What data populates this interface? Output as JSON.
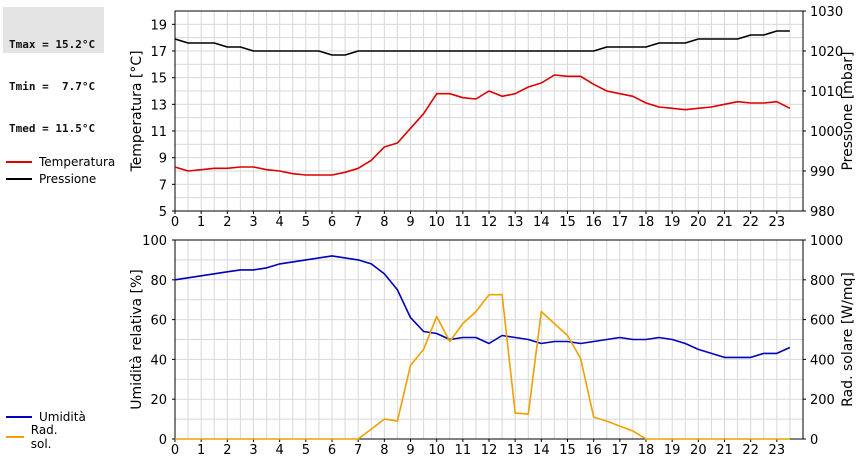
{
  "stats": {
    "tmax": "Tmax = 15.2°C",
    "tmin": "Tmin =  7.7°C",
    "tmed": "Tmed = 11.5°C"
  },
  "colors": {
    "temperatura": "#dd0000",
    "pressione": "#000000",
    "umidita": "#0000bb",
    "radsol": "#f0a000",
    "grid": "#d8d8d8"
  },
  "legend_top": [
    {
      "label": "Temperatura",
      "color": "#dd0000"
    },
    {
      "label": "Pressione",
      "color": "#000000"
    }
  ],
  "legend_bottom": [
    {
      "label": "Umidità",
      "color": "#0000bb"
    },
    {
      "label": "Rad. sol.",
      "color": "#f0a000"
    }
  ],
  "chart_data": [
    {
      "type": "line",
      "xlabel": "",
      "ylabel": "Temperatura [°C]",
      "ylabel_right": "Pressione [mbar]",
      "xlim": [
        0,
        24
      ],
      "xticks": [
        0,
        1,
        2,
        3,
        4,
        5,
        6,
        7,
        8,
        9,
        10,
        11,
        12,
        13,
        14,
        15,
        16,
        17,
        18,
        19,
        20,
        21,
        22,
        23
      ],
      "ylim": [
        5,
        20
      ],
      "yticks": [
        5,
        7,
        9,
        11,
        13,
        15,
        17,
        19
      ],
      "ylim_right": [
        980,
        1030
      ],
      "yticks_right": [
        980,
        990,
        1000,
        1010,
        1020,
        1030
      ],
      "grid": true,
      "x": [
        0,
        0.5,
        1,
        1.5,
        2,
        2.5,
        3,
        3.5,
        4,
        4.5,
        5,
        5.5,
        6,
        6.5,
        7,
        7.5,
        8,
        8.5,
        9,
        9.5,
        10,
        10.5,
        11,
        11.5,
        12,
        12.5,
        13,
        13.5,
        14,
        14.5,
        15,
        15.5,
        16,
        16.5,
        17,
        17.5,
        18,
        18.5,
        19,
        19.5,
        20,
        20.5,
        21,
        21.5,
        22,
        22.5,
        23,
        23.5
      ],
      "series": [
        {
          "name": "Temperatura",
          "axis": "left",
          "color": "#dd0000",
          "values": [
            8.3,
            8.0,
            8.1,
            8.2,
            8.2,
            8.3,
            8.3,
            8.1,
            8.0,
            7.8,
            7.7,
            7.7,
            7.7,
            7.9,
            8.2,
            8.8,
            9.8,
            10.1,
            11.2,
            12.3,
            13.8,
            13.8,
            13.5,
            13.4,
            14.0,
            13.6,
            13.8,
            14.3,
            14.6,
            15.2,
            15.1,
            15.1,
            14.5,
            14.0,
            13.8,
            13.6,
            13.1,
            12.8,
            12.7,
            12.6,
            12.7,
            12.8,
            13.0,
            13.2,
            13.1,
            13.1,
            13.2,
            12.7
          ]
        },
        {
          "name": "Pressione",
          "axis": "right",
          "color": "#000000",
          "values": [
            1023,
            1022,
            1022,
            1022,
            1021,
            1021,
            1020,
            1020,
            1020,
            1020,
            1020,
            1020,
            1019,
            1019,
            1020,
            1020,
            1020,
            1020,
            1020,
            1020,
            1020,
            1020,
            1020,
            1020,
            1020,
            1020,
            1020,
            1020,
            1020,
            1020,
            1020,
            1020,
            1020,
            1021,
            1021,
            1021,
            1021,
            1022,
            1022,
            1022,
            1023,
            1023,
            1023,
            1023,
            1024,
            1024,
            1025,
            1025
          ]
        }
      ]
    },
    {
      "type": "line",
      "xlabel": "",
      "ylabel": "Umidità relativa [%]",
      "ylabel_right": "Rad. solare [W/mq]",
      "xlim": [
        0,
        24
      ],
      "xticks": [
        0,
        1,
        2,
        3,
        4,
        5,
        6,
        7,
        8,
        9,
        10,
        11,
        12,
        13,
        14,
        15,
        16,
        17,
        18,
        19,
        20,
        21,
        22,
        23
      ],
      "ylim": [
        0,
        100
      ],
      "yticks": [
        0,
        20,
        40,
        60,
        80,
        100
      ],
      "ylim_right": [
        0,
        1000
      ],
      "yticks_right": [
        0,
        200,
        400,
        600,
        800,
        1000
      ],
      "grid": true,
      "x": [
        0,
        0.5,
        1,
        1.5,
        2,
        2.5,
        3,
        3.5,
        4,
        4.5,
        5,
        5.5,
        6,
        6.5,
        7,
        7.5,
        8,
        8.5,
        9,
        9.5,
        10,
        10.5,
        11,
        11.5,
        12,
        12.5,
        13,
        13.5,
        14,
        14.5,
        15,
        15.5,
        16,
        16.5,
        17,
        17.5,
        18,
        18.5,
        19,
        19.5,
        20,
        20.5,
        21,
        21.5,
        22,
        22.5,
        23,
        23.5
      ],
      "series": [
        {
          "name": "Umidità",
          "axis": "left",
          "color": "#0000bb",
          "values": [
            80,
            81,
            82,
            83,
            84,
            85,
            85,
            86,
            88,
            89,
            90,
            91,
            92,
            91,
            90,
            88,
            83,
            75,
            61,
            54,
            53,
            50,
            51,
            51,
            48,
            52,
            51,
            50,
            48,
            49,
            49,
            48,
            49,
            50,
            51,
            50,
            50,
            51,
            50,
            48,
            45,
            43,
            41,
            41,
            41,
            43,
            43,
            46
          ]
        },
        {
          "name": "Rad. sol.",
          "axis": "right",
          "color": "#f0a000",
          "values": [
            0,
            0,
            0,
            0,
            0,
            0,
            0,
            0,
            0,
            0,
            0,
            0,
            0,
            0,
            0,
            50,
            100,
            90,
            370,
            450,
            615,
            490,
            580,
            640,
            725,
            725,
            130,
            125,
            640,
            580,
            520,
            405,
            110,
            90,
            65,
            40,
            0,
            0,
            0,
            0,
            0,
            0,
            0,
            0,
            0,
            0,
            0,
            0
          ]
        }
      ]
    }
  ]
}
